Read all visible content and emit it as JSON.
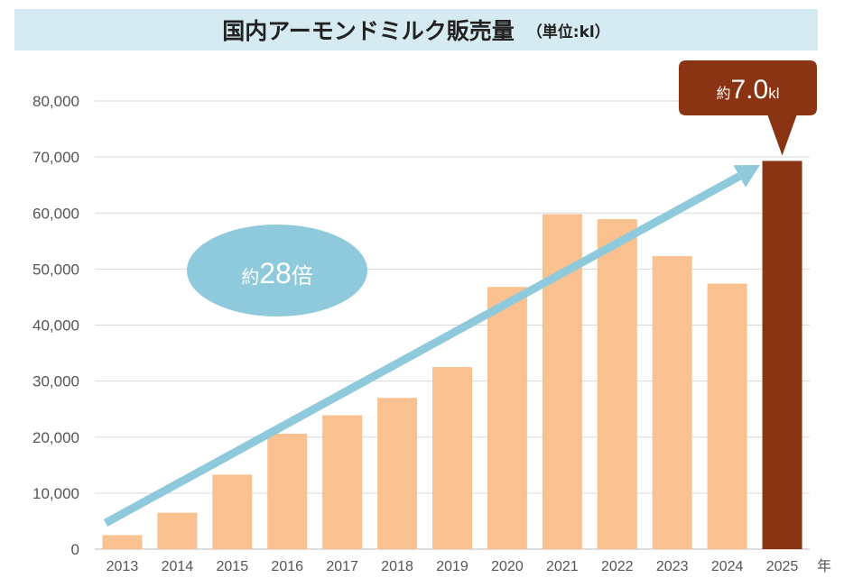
{
  "title": {
    "main": "国内アーモンドミルク販売量",
    "unit": "（単位:kl）"
  },
  "colors": {
    "bar": "#f9c18f",
    "highlight_bar": "#8a3414",
    "trend_arrow": "#8ecadb",
    "title_bg": "#d6ebf1"
  },
  "chart_data": {
    "type": "bar",
    "categories": [
      "2013",
      "2014",
      "2015",
      "2016",
      "2017",
      "2018",
      "2019",
      "2020",
      "2021",
      "2022",
      "2023",
      "2024",
      "2025"
    ],
    "values": [
      2500,
      6500,
      13300,
      20600,
      23900,
      27000,
      32500,
      46800,
      59800,
      58900,
      52300,
      47400,
      69300
    ],
    "highlight_index": 12,
    "ylim": [
      0,
      80000
    ],
    "yticks": [
      "0",
      "10,000",
      "20,000",
      "30,000",
      "40,000",
      "50,000",
      "60,000",
      "70,000",
      "80,000"
    ],
    "x_unit": "年",
    "grid": true,
    "legend": "none"
  },
  "annotations": {
    "callout": {
      "prefix": "約",
      "value": "7.0",
      "unit": "kl"
    },
    "growth": {
      "prefix": "約",
      "value": "28",
      "suffix": "倍"
    }
  }
}
